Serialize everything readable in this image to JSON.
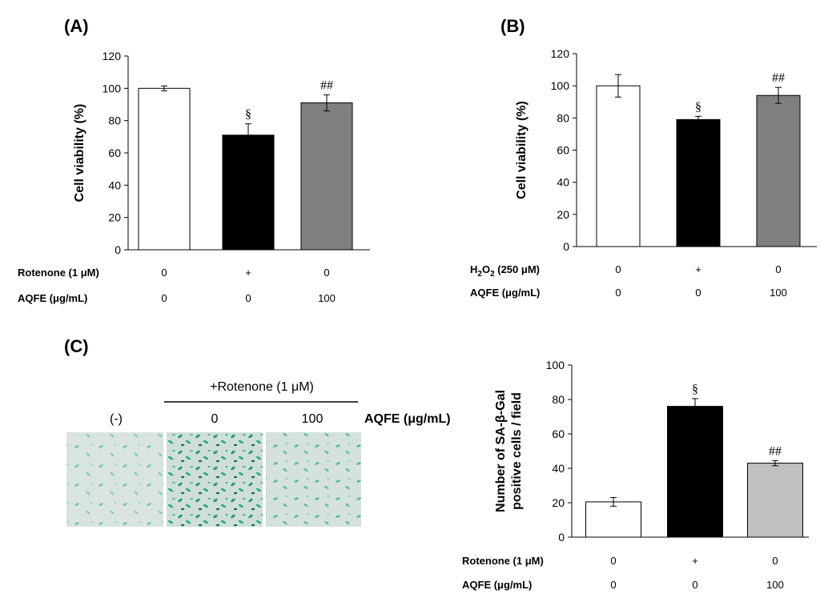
{
  "panels": {
    "A": "(A)",
    "B": "(B)",
    "C": "(C)"
  },
  "images_header": {
    "treatment": "+Rotenone (1 μM)",
    "labels": [
      "(-)",
      "0",
      "100"
    ],
    "unit": "AQFE (μg/mL)"
  },
  "chart_data": [
    {
      "type": "bar",
      "panel": "A",
      "ylabel": "Cell viability (%)",
      "ylim": [
        0,
        120
      ],
      "yticks": [
        0,
        20,
        40,
        60,
        80,
        100,
        120
      ],
      "values": [
        100,
        71,
        91
      ],
      "errors": [
        1.5,
        7,
        5
      ],
      "annotations": [
        "",
        "§",
        "##"
      ],
      "colors": [
        "#ffffff",
        "#000000",
        "#808080"
      ],
      "rows": [
        {
          "label": "Rotenone (1 μM)",
          "values": [
            "0",
            "+",
            "0"
          ]
        },
        {
          "label": "AQFE (μg/mL)",
          "values": [
            "0",
            "0",
            "100"
          ]
        }
      ]
    },
    {
      "type": "bar",
      "panel": "B",
      "ylabel": "Cell viability (%)",
      "ylim": [
        0,
        120
      ],
      "yticks": [
        0,
        20,
        40,
        60,
        80,
        100,
        120
      ],
      "values": [
        100,
        79,
        94
      ],
      "errors": [
        7,
        2,
        5
      ],
      "annotations": [
        "",
        "§",
        "##"
      ],
      "colors": [
        "#ffffff",
        "#000000",
        "#808080"
      ],
      "rows": [
        {
          "label": "H2O2 (250 μM)",
          "label_main": "H",
          "label_sub": "2",
          "label_o": "O",
          "label_sub2": "2",
          "label_rest": " (250 μM)",
          "values": [
            "0",
            "+",
            "0"
          ]
        },
        {
          "label": "AQFE (μg/mL)",
          "values": [
            "0",
            "0",
            "100"
          ]
        }
      ]
    },
    {
      "type": "bar",
      "panel": "C",
      "ylabel": [
        "Number of SA-β-Gal",
        "positive cells / field"
      ],
      "ylim": [
        0,
        100
      ],
      "yticks": [
        0,
        20,
        40,
        60,
        80,
        100
      ],
      "values": [
        20.5,
        76,
        43
      ],
      "errors": [
        2.5,
        4.5,
        1.5
      ],
      "annotations": [
        "",
        "§",
        "##"
      ],
      "colors": [
        "#ffffff",
        "#000000",
        "#c0c0c0"
      ],
      "rows": [
        {
          "label": "Rotenone (1 μM)",
          "values": [
            "0",
            "+",
            "0"
          ]
        },
        {
          "label": "AQFE (μg/mL)",
          "values": [
            "0",
            "0",
            "100"
          ]
        }
      ]
    }
  ]
}
